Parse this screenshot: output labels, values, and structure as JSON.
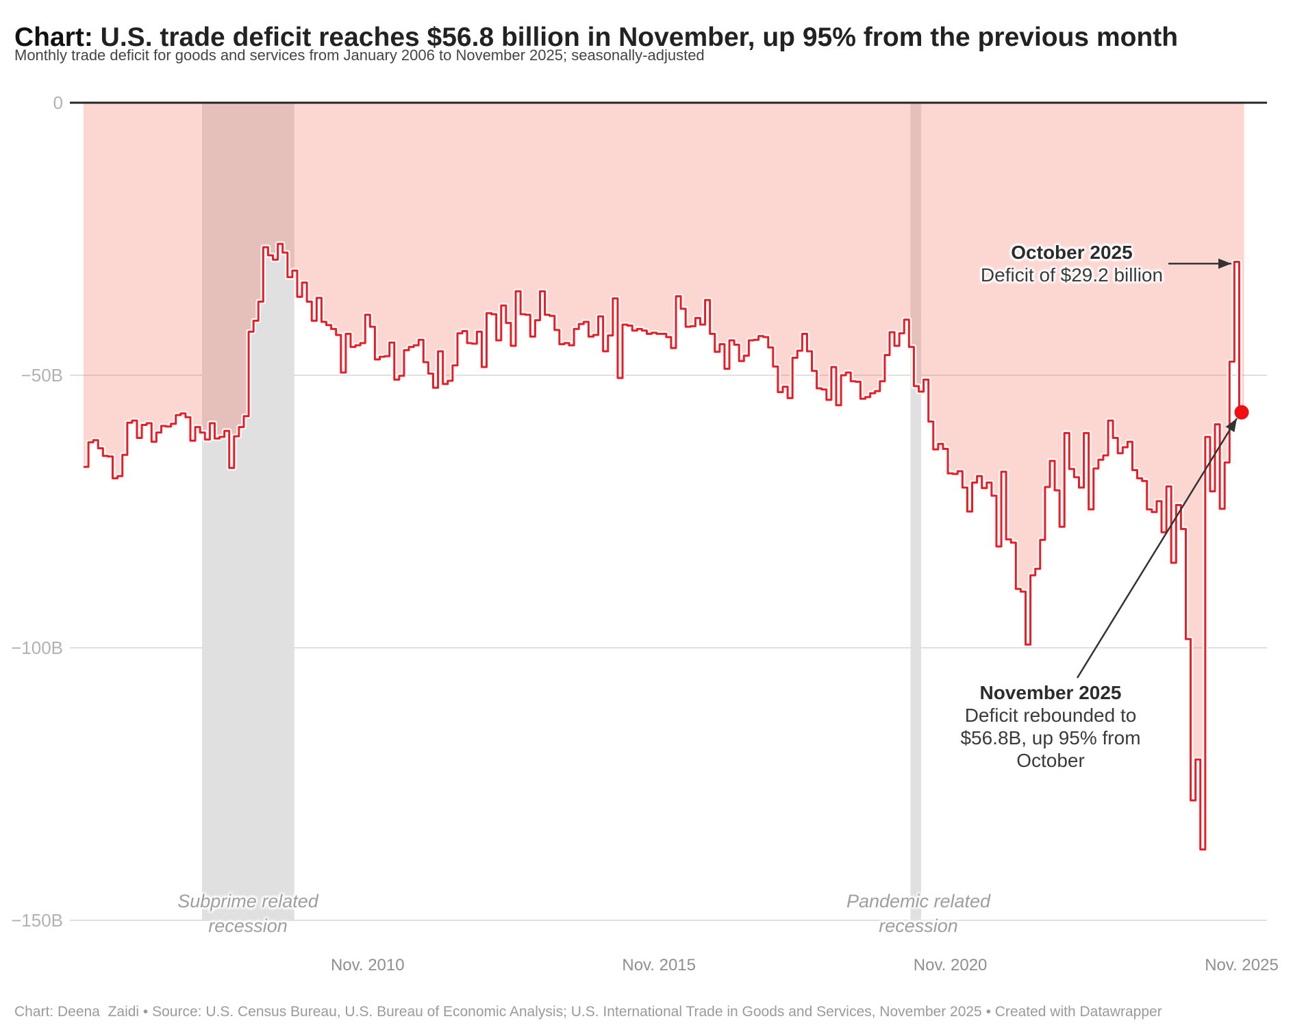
{
  "title": {
    "prefix": "Chart:",
    "rest": " U.S. trade deficit reaches $56.8 billion in November, up 95% from the previous month"
  },
  "subtitle": "Monthly trade deficit for goods and services from January 2006 to November 2025; seasonally-adjusted",
  "footer": "Chart: Deena  Zaidi • Source: U.S. Census Bureau, U.S. Bureau of Economic Analysis; U.S. International Trade in Goods and Services, November 2025 • Created with Datawrapper",
  "annotations": {
    "october": {
      "title": "October 2025",
      "body": "Deficit of $29.2 billion"
    },
    "november": {
      "title": "November 2025",
      "body_lines": [
        "Deficit rebounded to",
        "$56.8B, up 95% from",
        "October"
      ]
    }
  },
  "colors": {
    "line_red": "#ED1C24",
    "dot_red": "#F20D12",
    "area_pink_rgba": "rgba(243,104,86,0.27)",
    "recession_gray": "#e0e0e0",
    "gridline": "#e0e0e0",
    "zero_line": "#262626",
    "annotation_ink": "#333333"
  },
  "chart_data": {
    "type": "line",
    "subtype": "step-after",
    "series_name": "Monthly U.S. trade deficit, goods and services (seasonally adjusted)",
    "unit": "USD billions",
    "x_start": "2006-01",
    "x_end": "2025-11",
    "frequency": "monthly",
    "ylim": [
      -150,
      0
    ],
    "grid": true,
    "y_ticks": [
      {
        "label": "0",
        "value": 0
      },
      {
        "label": "−50B",
        "value": -50
      },
      {
        "label": "−100B",
        "value": -100
      },
      {
        "label": "−150B",
        "value": -150
      }
    ],
    "x_ticks": [
      {
        "label": "Nov. 2010",
        "month_index": 58
      },
      {
        "label": "Nov. 2015",
        "month_index": 118
      },
      {
        "label": "Nov. 2020",
        "month_index": 178
      },
      {
        "label": "Nov. 2025",
        "month_index": 238
      }
    ],
    "values": [
      -66.8,
      -62.3,
      -61.9,
      -63.4,
      -64.8,
      -64.9,
      -68.9,
      -68.5,
      -64.6,
      -58.7,
      -58.3,
      -61.5,
      -59.1,
      -58.8,
      -62.2,
      -60.5,
      -59.3,
      -59.4,
      -58.9,
      -57.3,
      -57.0,
      -57.7,
      -62.0,
      -59.5,
      -60.5,
      -61.8,
      -58.8,
      -61.6,
      -61.3,
      -60.2,
      -67.0,
      -61.2,
      -59.5,
      -57.5,
      -42.0,
      -40.0,
      -36.5,
      -26.5,
      -28.0,
      -28.8,
      -25.9,
      -27.5,
      -32.0,
      -30.8,
      -35.6,
      -33.0,
      -36.5,
      -40.0,
      -35.8,
      -40.2,
      -40.8,
      -41.5,
      -42.6,
      -49.5,
      -42.4,
      -44.8,
      -44.5,
      -44.1,
      -38.9,
      -41.1,
      -47.1,
      -46.6,
      -46.5,
      -44.0,
      -50.8,
      -50.1,
      -45.4,
      -44.8,
      -44.5,
      -43.5,
      -47.6,
      -49.7,
      -52.3,
      -45.6,
      -51.6,
      -51.0,
      -48.2,
      -42.3,
      -41.9,
      -44.1,
      -44.2,
      -42.0,
      -48.5,
      -38.6,
      -38.8,
      -43.6,
      -37.2,
      -40.4,
      -44.6,
      -34.6,
      -38.8,
      -38.9,
      -42.9,
      -39.9,
      -34.6,
      -38.9,
      -39.1,
      -41.7,
      -44.3,
      -44.1,
      -44.5,
      -41.5,
      -40.6,
      -40.2,
      -42.9,
      -42.6,
      -39.2,
      -45.6,
      -42.7,
      -35.9,
      -50.5,
      -40.7,
      -40.9,
      -41.8,
      -41.5,
      -41.8,
      -42.4,
      -42.2,
      -42.4,
      -42.4,
      -43.0,
      -45.0,
      -35.5,
      -37.8,
      -41.1,
      -41.0,
      -39.5,
      -40.7,
      -36.2,
      -42.4,
      -45.7,
      -44.3,
      -48.8,
      -43.6,
      -44.4,
      -47.4,
      -46.4,
      -43.6,
      -43.5,
      -42.8,
      -43.0,
      -44.9,
      -48.4,
      -53.1,
      -52.1,
      -54.2,
      -46.8,
      -45.5,
      -42.4,
      -45.6,
      -49.2,
      -52.4,
      -52.6,
      -54.5,
      -48.5,
      -55.5,
      -50.0,
      -49.5,
      -51.1,
      -51.2,
      -54.3,
      -54.0,
      -53.3,
      -52.9,
      -51.1,
      -46.3,
      -42.1,
      -44.6,
      -42.3,
      -39.8,
      -44.8,
      -52.0,
      -53.0,
      -50.8,
      -58.5,
      -63.6,
      -62.6,
      -63.5,
      -68.0,
      -68.1,
      -67.6,
      -70.6,
      -75.0,
      -69.7,
      -68.5,
      -70.7,
      -69.7,
      -72.1,
      -81.4,
      -67.7,
      -80.1,
      -80.7,
      -89.2,
      -89.7,
      -99.4,
      -86.7,
      -85.5,
      -80.2,
      -70.5,
      -65.7,
      -71.1,
      -77.8,
      -60.6,
      -67.2,
      -68.7,
      -70.6,
      -60.6,
      -74.6,
      -67.1,
      -65.5,
      -64.7,
      -58.3,
      -61.5,
      -64.3,
      -63.2,
      -62.2,
      -67.4,
      -68.9,
      -69.4,
      -74.6,
      -75.1,
      -73.1,
      -78.8,
      -70.4,
      -84.4,
      -73.8,
      -78.2,
      -98.4,
      -128.0,
      -120.5,
      -137.0,
      -61.3,
      -71.3,
      -59.0,
      -74.5,
      -66.0,
      -47.5,
      -29.2,
      -56.8
    ],
    "highlighted_points": [
      {
        "date": "2025-10",
        "value": -29.2
      },
      {
        "date": "2025-11",
        "value": -56.8
      }
    ],
    "regions": [
      {
        "label_lines": [
          "Subprime related",
          "recession"
        ],
        "start_month": 24.4,
        "end_month": 43.4,
        "label_cx": 362
      },
      {
        "label_lines": [
          "Pandemic related",
          "recession"
        ],
        "start_month": 170.3,
        "end_month": 172.5,
        "label_cx": 1341
      }
    ]
  }
}
